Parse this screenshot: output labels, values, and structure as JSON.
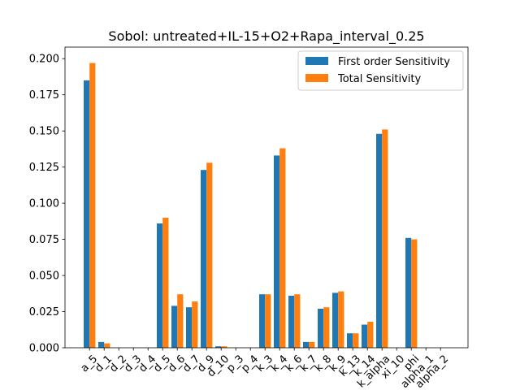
{
  "chart_data": {
    "type": "bar",
    "title": "Sobol: untreated+IL-15+O2+Rapa_interval_0.25",
    "xlabel": "",
    "ylabel": "",
    "ylim": [
      0,
      0.208
    ],
    "yticks": [
      "0.000",
      "0.025",
      "0.050",
      "0.075",
      "0.100",
      "0.125",
      "0.150",
      "0.175",
      "0.200"
    ],
    "grid": false,
    "legend_position": "top-right",
    "categories": [
      "a_5",
      "d_1",
      "d_2",
      "d_3",
      "d_4",
      "d_5",
      "d_6",
      "d_7",
      "d_9",
      "d_10",
      "p_3",
      "p_4",
      "k_3",
      "k_4",
      "k_6",
      "k_7",
      "k_8",
      "k_9",
      "k_13",
      "k_14",
      "k_alpha",
      "xi_10",
      "phi",
      "alpha_1",
      "alpha_2"
    ],
    "series": [
      {
        "name": "First order Sensitivity",
        "color": "#1f77b4",
        "values": [
          0.185,
          0.004,
          0.0,
          0.0,
          0.0,
          0.086,
          0.029,
          0.028,
          0.123,
          0.001,
          0.0,
          0.0,
          0.037,
          0.133,
          0.036,
          0.004,
          0.027,
          0.038,
          0.01,
          0.016,
          0.148,
          0.0,
          0.076,
          0.0,
          0.0
        ]
      },
      {
        "name": "Total Sensitivity",
        "color": "#ff7f0e",
        "values": [
          0.197,
          0.003,
          0.0,
          0.0,
          0.0,
          0.09,
          0.037,
          0.032,
          0.128,
          0.001,
          0.0,
          0.0,
          0.037,
          0.138,
          0.037,
          0.004,
          0.028,
          0.039,
          0.01,
          0.018,
          0.151,
          0.0,
          0.075,
          0.0,
          0.0
        ]
      }
    ]
  }
}
